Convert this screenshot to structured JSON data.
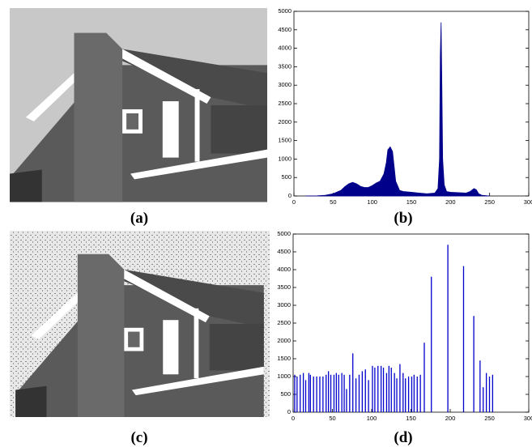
{
  "captions": [
    "(a)",
    "(b)",
    "(c)",
    "(d)"
  ],
  "chart_data": [
    {
      "type": "area",
      "color": "#00008b",
      "x": [
        15,
        30,
        40,
        50,
        60,
        65,
        70,
        75,
        80,
        85,
        90,
        95,
        100,
        105,
        110,
        115,
        118,
        120,
        123,
        126,
        128,
        130,
        135,
        140,
        150,
        160,
        170,
        180,
        184,
        186,
        187,
        188,
        189,
        190,
        192,
        195,
        200,
        210,
        220,
        225,
        230,
        233,
        236,
        240,
        250
      ],
      "values": [
        0,
        5,
        20,
        60,
        150,
        250,
        330,
        370,
        330,
        260,
        230,
        230,
        280,
        350,
        400,
        600,
        900,
        1250,
        1330,
        1200,
        800,
        400,
        150,
        120,
        100,
        80,
        60,
        80,
        200,
        1000,
        3800,
        4700,
        3000,
        1000,
        300,
        120,
        100,
        90,
        80,
        120,
        200,
        170,
        60,
        20,
        0
      ],
      "xlim": [
        0,
        300
      ],
      "xticks": [
        0,
        50,
        100,
        150,
        200,
        250,
        300
      ],
      "ylim": [
        0,
        5000
      ],
      "yticks": [
        0,
        500,
        1000,
        1500,
        2000,
        2500,
        3000,
        3500,
        4000,
        4500,
        5000
      ]
    },
    {
      "type": "bar",
      "color": "#0000cd",
      "x": [
        2,
        5,
        9,
        13,
        16,
        20,
        22,
        26,
        30,
        34,
        38,
        42,
        45,
        48,
        52,
        55,
        58,
        62,
        65,
        68,
        72,
        76,
        80,
        84,
        88,
        92,
        96,
        101,
        104,
        108,
        112,
        115,
        119,
        122,
        125,
        129,
        132,
        136,
        140,
        143,
        147,
        151,
        154,
        158,
        162,
        167,
        176,
        197,
        217,
        230,
        238,
        242,
        246,
        250,
        254
      ],
      "values": [
        1050,
        1000,
        1050,
        1100,
        900,
        1100,
        1050,
        1000,
        1000,
        1000,
        1000,
        1050,
        1150,
        1050,
        1050,
        1100,
        1050,
        1100,
        1050,
        650,
        1050,
        1650,
        950,
        1050,
        1150,
        1200,
        900,
        1300,
        1250,
        1300,
        1300,
        1250,
        1100,
        1300,
        1250,
        1100,
        950,
        1350,
        1100,
        950,
        1000,
        1000,
        1050,
        1000,
        1050,
        1950,
        3800,
        4700,
        4100,
        2700,
        1450,
        700,
        1100,
        1000,
        1050
      ],
      "xlim": [
        0,
        300
      ],
      "xticks": [
        0,
        50,
        100,
        150,
        200,
        250,
        300
      ],
      "ylim": [
        0,
        5000
      ],
      "yticks": [
        0,
        500,
        1000,
        1500,
        2000,
        2500,
        3000,
        3500,
        4000,
        4500,
        5000
      ]
    }
  ]
}
